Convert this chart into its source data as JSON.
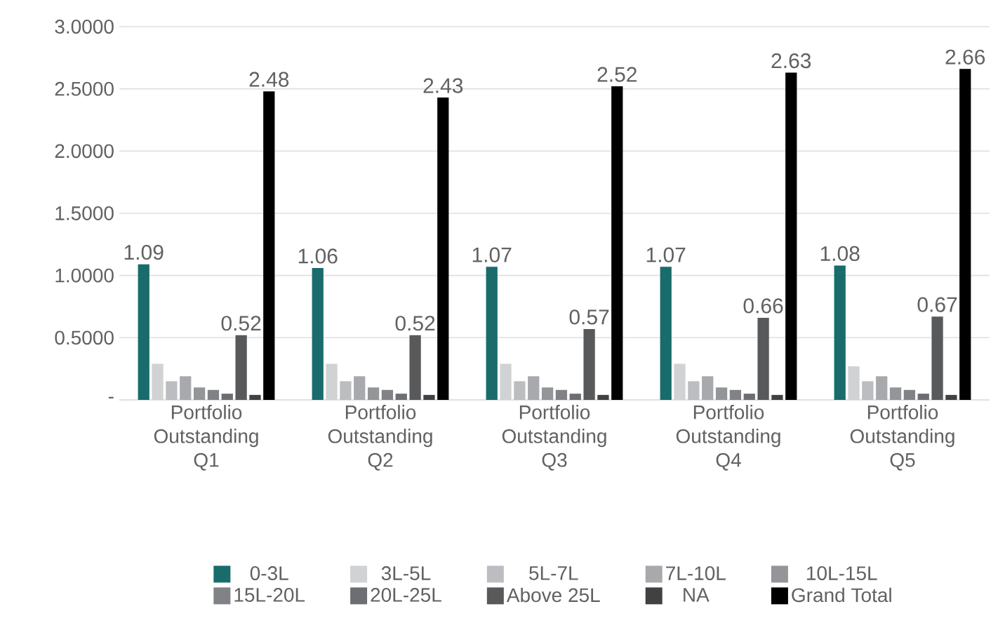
{
  "chart_data": {
    "type": "bar",
    "categories": [
      "Portfolio Outstanding Q1",
      "Portfolio Outstanding Q2",
      "Portfolio Outstanding Q3",
      "Portfolio Outstanding Q4",
      "Portfolio Outstanding Q5"
    ],
    "series": [
      {
        "name": "0-3L",
        "color": "#1a6b6b",
        "values": [
          1.09,
          1.06,
          1.07,
          1.07,
          1.08
        ],
        "value_labels": [
          "1.09",
          "1.06",
          "1.07",
          "1.07",
          "1.08"
        ]
      },
      {
        "name": "3L-5L",
        "color": "#d1d2d4",
        "values": [
          0.29,
          0.29,
          0.29,
          0.29,
          0.27
        ]
      },
      {
        "name": "5L-7L",
        "color": "#bcbdc0",
        "values": [
          0.15,
          0.15,
          0.15,
          0.15,
          0.15
        ]
      },
      {
        "name": "7L-10L",
        "color": "#a7a9ac",
        "values": [
          0.19,
          0.19,
          0.19,
          0.19,
          0.19
        ]
      },
      {
        "name": "10L-15L",
        "color": "#939598",
        "values": [
          0.1,
          0.1,
          0.1,
          0.1,
          0.1
        ]
      },
      {
        "name": "15L-20L",
        "color": "#808285",
        "values": [
          0.08,
          0.08,
          0.08,
          0.08,
          0.08
        ]
      },
      {
        "name": "20L-25L",
        "color": "#6d6e71",
        "values": [
          0.05,
          0.05,
          0.05,
          0.05,
          0.05
        ]
      },
      {
        "name": "Above 25L",
        "color": "#58595b",
        "values": [
          0.52,
          0.52,
          0.57,
          0.66,
          0.67
        ],
        "value_labels": [
          "0.52",
          "0.52",
          "0.57",
          "0.66",
          "0.67"
        ]
      },
      {
        "name": "NA",
        "color": "#414042",
        "values": [
          0.04,
          0.04,
          0.04,
          0.04,
          0.04
        ]
      },
      {
        "name": "Grand Total",
        "color": "#000000",
        "values": [
          2.48,
          2.43,
          2.52,
          2.63,
          2.66
        ],
        "value_labels": [
          "2.48",
          "2.43",
          "2.52",
          "2.63",
          "2.66"
        ]
      }
    ],
    "ylim": [
      0,
      3.0
    ],
    "yticks": [
      {
        "value": 0,
        "label": "-"
      },
      {
        "value": 0.5,
        "label": "0.5000"
      },
      {
        "value": 1.0,
        "label": "1.0000"
      },
      {
        "value": 1.5,
        "label": "1.5000"
      },
      {
        "value": 2.0,
        "label": "2.0000"
      },
      {
        "value": 2.5,
        "label": "2.5000"
      },
      {
        "value": 3.0,
        "label": "3.0000"
      }
    ],
    "grid": "y",
    "legend": "bottom"
  }
}
